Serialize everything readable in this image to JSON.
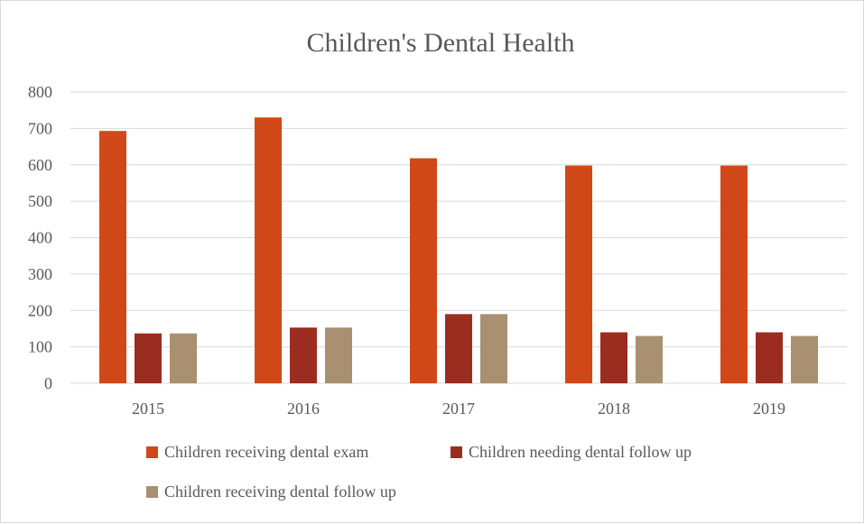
{
  "chart_data": {
    "type": "bar",
    "title": "Children's Dental Health",
    "xlabel": "",
    "ylabel": "",
    "categories": [
      "2015",
      "2016",
      "2017",
      "2018",
      "2019"
    ],
    "ylim": [
      0,
      800
    ],
    "yticks": [
      0,
      100,
      200,
      300,
      400,
      500,
      600,
      700,
      800
    ],
    "grid": true,
    "legend_position": "bottom",
    "series": [
      {
        "name": "Children receiving dental exam",
        "color": "#d14818",
        "values": [
          693,
          730,
          618,
          598,
          598
        ]
      },
      {
        "name": "Children needing dental follow up",
        "color": "#9b2d20",
        "values": [
          137,
          153,
          190,
          140,
          140
        ]
      },
      {
        "name": "Children receiving dental follow up",
        "color": "#a89070",
        "values": [
          137,
          153,
          190,
          130,
          130
        ]
      }
    ]
  }
}
